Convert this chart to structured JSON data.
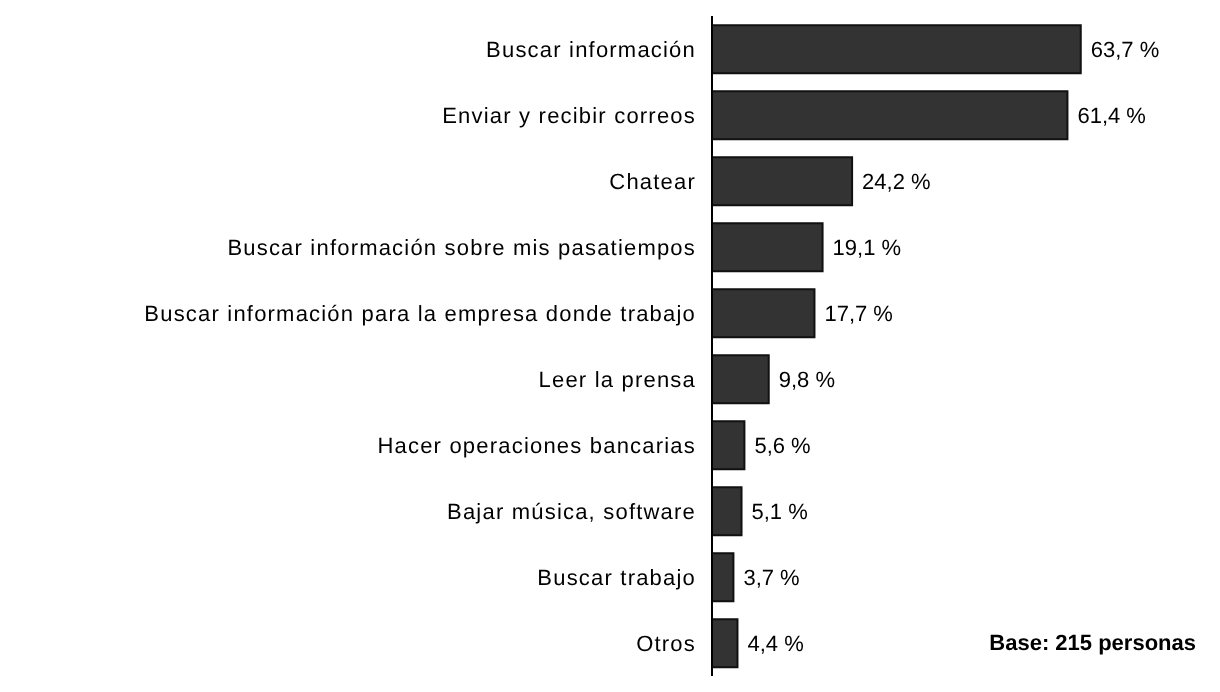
{
  "chart_data": {
    "type": "bar",
    "orientation": "horizontal",
    "categories": [
      "Buscar información",
      "Enviar y recibir correos",
      "Chatear",
      "Buscar información sobre mis pasatiempos",
      "Buscar información para la empresa donde trabajo",
      "Leer la prensa",
      "Hacer operaciones bancarias",
      "Bajar música, software",
      "Buscar trabajo",
      "Otros"
    ],
    "values": [
      63.7,
      61.4,
      24.2,
      19.1,
      17.7,
      9.8,
      5.6,
      5.1,
      3.7,
      4.4
    ],
    "value_labels": [
      "63,7 %",
      "61,4 %",
      "24,2 %",
      "19,1 %",
      "17,7 %",
      "9,8 %",
      "5,6 %",
      "5,1 %",
      "3,7 %",
      "4,4 %"
    ],
    "color": "#333333",
    "annotations": [
      "Base: 215 personas"
    ]
  }
}
